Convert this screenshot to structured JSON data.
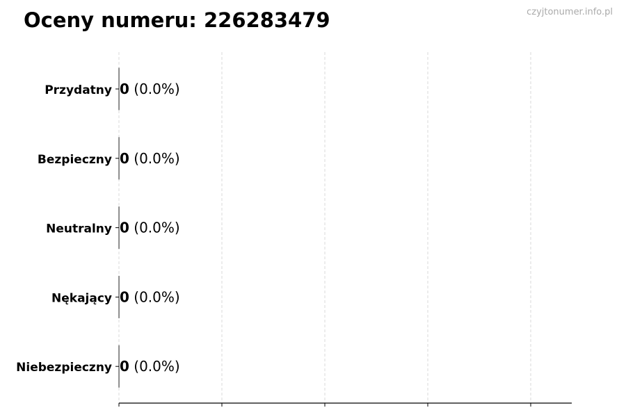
{
  "title": "Oceny numeru: 226283479",
  "watermark": "czyjtonumer.info.pl",
  "chart_data": {
    "type": "bar",
    "orientation": "horizontal",
    "title": "Oceny numeru: 226283479",
    "categories": [
      "Przydatny",
      "Bezpieczny",
      "Neutralny",
      "Nękający",
      "Niebezpieczny"
    ],
    "values": [
      0,
      0,
      0,
      0,
      0
    ],
    "data_labels": [
      {
        "count": "0",
        "pct": "(0.0%)"
      },
      {
        "count": "0",
        "pct": "(0.0%)"
      },
      {
        "count": "0",
        "pct": "(0.0%)"
      },
      {
        "count": "0",
        "pct": "(0.0%)"
      },
      {
        "count": "0",
        "pct": "(0.0%)"
      }
    ],
    "xlabel": "",
    "ylabel": "",
    "x_tick_labels_shown": false,
    "grid": "vertical dashed",
    "colors": {
      "grid": "#d9d9d9",
      "bar_edge": "#333333",
      "watermark": "#aaaaaa"
    }
  }
}
